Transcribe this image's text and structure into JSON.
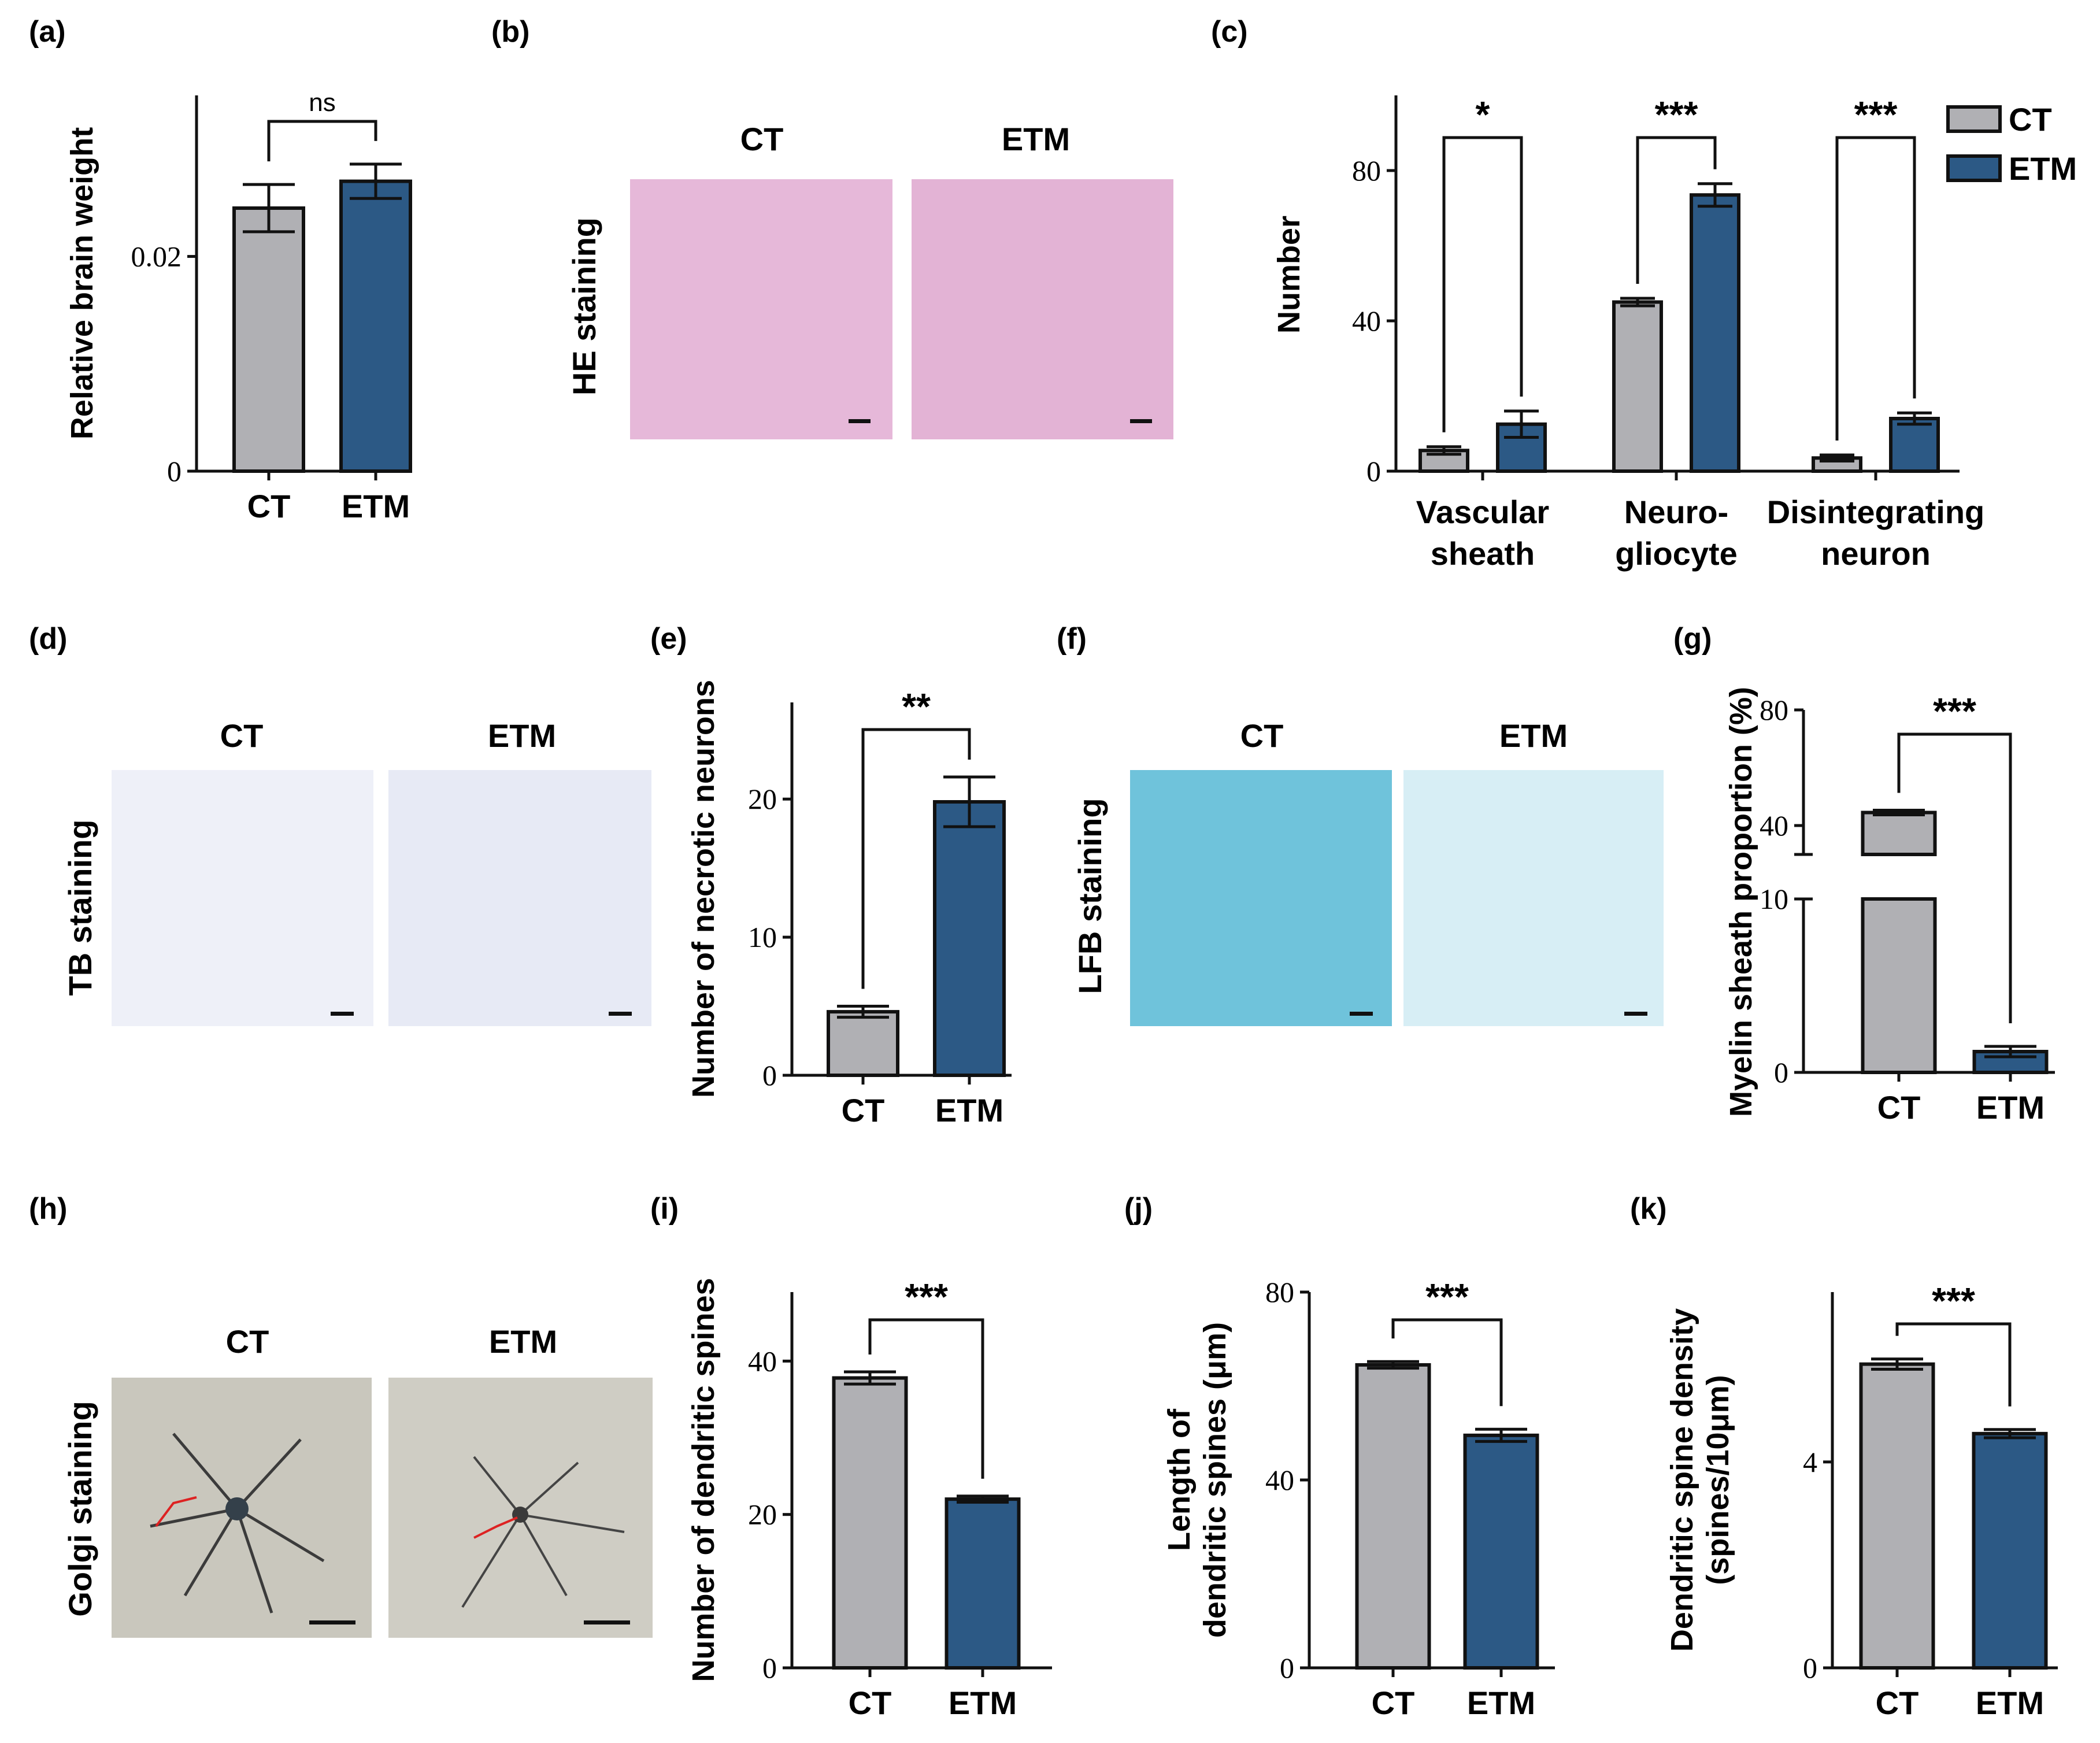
{
  "colors": {
    "CT": "#b0b0b4",
    "ETM": "#2c5985",
    "outline": "#111111",
    "he_bg": "#e6b8d9",
    "tb_bg": "#eef0f8",
    "lfb_ct_bg": "#6fc3db",
    "lfb_etm_bg": "#d7eef5",
    "golgi_bg": "#c9c7bd"
  },
  "panel_labels": [
    "(a)",
    "(b)",
    "(c)",
    "(d)",
    "(e)",
    "(f)",
    "(g)",
    "(h)",
    "(i)",
    "(j)",
    "(k)"
  ],
  "images": {
    "b": {
      "groups": [
        "CT",
        "ETM"
      ],
      "stain": "HE staining"
    },
    "d": {
      "groups": [
        "CT",
        "ETM"
      ],
      "stain": "TB staining"
    },
    "f": {
      "groups": [
        "CT",
        "ETM"
      ],
      "stain": "LFB staining"
    },
    "h": {
      "groups": [
        "CT",
        "ETM"
      ],
      "stain": "Golgi staining"
    }
  },
  "chart_data": [
    {
      "panel": "a",
      "type": "bar",
      "categories": [
        "CT",
        "ETM"
      ],
      "values": [
        0.0245,
        0.027
      ],
      "errors": [
        0.0022,
        0.0016
      ],
      "ylabel": "Relative brain weight",
      "ylim": [
        0,
        0.035
      ],
      "yticks": [
        0,
        0.02
      ],
      "ytick_labels": [
        "0",
        "0.02"
      ],
      "significance": [
        {
          "pair": [
            0,
            1
          ],
          "label": "ns"
        }
      ]
    },
    {
      "panel": "c",
      "type": "bar",
      "categories": [
        [
          "Vascular",
          "sheath"
        ],
        [
          "Neuro-",
          "gliocyte"
        ],
        [
          "Disintegrating",
          "neuron"
        ]
      ],
      "series": [
        {
          "name": "CT",
          "values": [
            5.5,
            45,
            3.5
          ],
          "errors": [
            1,
            1,
            0.8
          ]
        },
        {
          "name": "ETM",
          "values": [
            12.5,
            73.5,
            14
          ],
          "errors": [
            3.5,
            3,
            1.5
          ]
        }
      ],
      "ylabel": "Number",
      "ylim": [
        0,
        100
      ],
      "yticks": [
        0,
        40,
        80
      ],
      "legend": "top-right",
      "significance": [
        {
          "group": 0,
          "label": "*"
        },
        {
          "group": 1,
          "label": "***"
        },
        {
          "group": 2,
          "label": "***"
        }
      ]
    },
    {
      "panel": "e",
      "type": "bar",
      "categories": [
        "CT",
        "ETM"
      ],
      "values": [
        4.6,
        19.8
      ],
      "errors": [
        0.4,
        1.8
      ],
      "ylabel": "Number of necrotic neurons",
      "ylim": [
        0,
        27
      ],
      "yticks": [
        0,
        10,
        20
      ],
      "significance": [
        {
          "pair": [
            0,
            1
          ],
          "label": "**"
        }
      ]
    },
    {
      "panel": "g",
      "type": "bar",
      "categories": [
        "CT",
        "ETM"
      ],
      "values": [
        44.5,
        1.2
      ],
      "errors": [
        0.8,
        0.3
      ],
      "ylabel": "Myelin sheath proportion (%)",
      "axis_break": [
        10,
        30
      ],
      "yticks": [
        0,
        10,
        40,
        80
      ],
      "significance": [
        {
          "pair": [
            0,
            1
          ],
          "label": "***"
        }
      ]
    },
    {
      "panel": "i",
      "type": "bar",
      "categories": [
        "CT",
        "ETM"
      ],
      "values": [
        37.8,
        22
      ],
      "errors": [
        0.8,
        0.4
      ],
      "ylabel": "Number of dendritic spines",
      "ylim": [
        0,
        49
      ],
      "yticks": [
        0,
        20,
        40
      ],
      "significance": [
        {
          "pair": [
            0,
            1
          ],
          "label": "***"
        }
      ]
    },
    {
      "panel": "j",
      "type": "bar",
      "categories": [
        "CT",
        "ETM"
      ],
      "values": [
        64.5,
        49.5
      ],
      "errors": [
        0.7,
        1.3
      ],
      "ylabel": [
        "Length of",
        "dendritic spines (μm)"
      ],
      "ylim": [
        0,
        80
      ],
      "yticks": [
        0,
        40,
        80
      ],
      "significance": [
        {
          "pair": [
            0,
            1
          ],
          "label": "***"
        }
      ]
    },
    {
      "panel": "k",
      "type": "bar",
      "categories": [
        "CT",
        "ETM"
      ],
      "values": [
        5.9,
        4.55
      ],
      "errors": [
        0.1,
        0.08
      ],
      "ylabel": [
        "Dendritic spine density",
        "(spines/10μm)"
      ],
      "ylim": [
        0,
        7.3
      ],
      "yticks": [
        0,
        4
      ],
      "significance": [
        {
          "pair": [
            0,
            1
          ],
          "label": "***"
        }
      ]
    }
  ]
}
